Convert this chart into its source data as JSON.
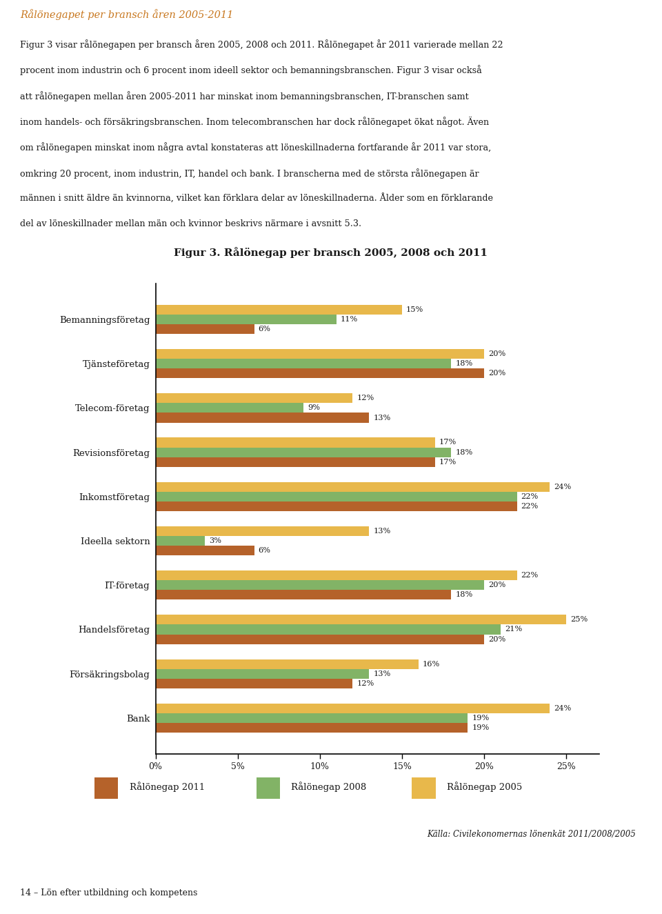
{
  "title": "Figur 3. Rålönegap per bransch 2005, 2008 och 2011",
  "header_title": "Rålönegapet per bransch åren 2005-2011",
  "header_lines": [
    "Figur 3 visar rålönegapen per bransch åren 2005, 2008 och 2011. Rålönegapet år 2011 varierade mellan 22",
    "procent inom industrin och 6 procent inom ideell sektor och bemanningsbranschen. Figur 3 visar också",
    "att rålönegapen mellan åren 2005-2011 har minskat inom bemanningsbranschen, IT-branschen samt",
    "inom handels- och försäkringsbranschen. Inom telecombranschen har dock rålönegapet ökat något. Även",
    "om rålönegapen minskat inom några avtal konstateras att löneskillnaderna fortfarande år 2011 var stora,",
    "omkring 20 procent, inom industrin, IT, handel och bank. I branscherna med de största rålönegapen är",
    "männen i snitt äldre än kvinnorna, vilket kan förklara delar av löneskillnaderna. Ålder som en förklarande",
    "del av löneskillnader mellan män och kvinnor beskrivs närmare i avsnitt 5.3."
  ],
  "footer_source": "Källa: Civilekonomernas lönenkät 2011/2008/2005",
  "footer_text": "14 – Lön efter utbildning och kompetens",
  "categories": [
    "Bemanningsföretag",
    "Tjänsteföretag",
    "Telecom-företag",
    "Revisionsföretag",
    "Inkomstföretag",
    "Ideella sektorn",
    "IT-företag",
    "Handelsföretag",
    "Försäkringsbolag",
    "Bank"
  ],
  "values_2011": [
    0.06,
    0.2,
    0.13,
    0.17,
    0.22,
    0.06,
    0.18,
    0.2,
    0.12,
    0.19
  ],
  "values_2008": [
    0.11,
    0.18,
    0.09,
    0.18,
    0.22,
    0.03,
    0.2,
    0.21,
    0.13,
    0.19
  ],
  "values_2005": [
    0.15,
    0.2,
    0.12,
    0.17,
    0.24,
    0.13,
    0.22,
    0.25,
    0.16,
    0.24
  ],
  "color_2011": "#B5622A",
  "color_2008": "#82B366",
  "color_2005": "#E8B84B",
  "bar_height": 0.22,
  "xlim": [
    0,
    0.27
  ],
  "xticks": [
    0,
    0.05,
    0.1,
    0.15,
    0.2,
    0.25
  ],
  "xticklabels": [
    "0%",
    "5%",
    "10%",
    "15%",
    "20%",
    "25%"
  ],
  "legend_labels": [
    "Rålönegap 2011",
    "Rålönegap 2008",
    "Rålönegap 2005"
  ],
  "bg_color": "#FFFFFF",
  "text_color": "#1a1a1a",
  "header_title_color": "#C87820"
}
